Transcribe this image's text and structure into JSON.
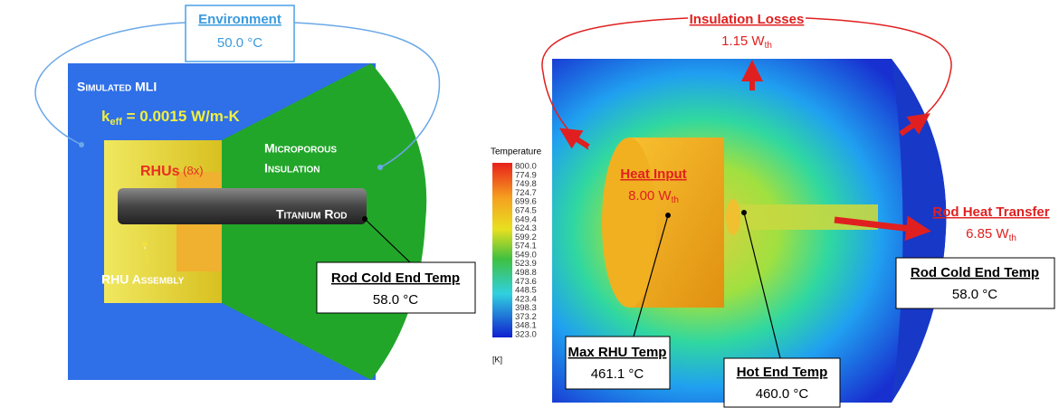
{
  "left": {
    "environment": {
      "title": "Environment",
      "value": "50.0 °C"
    },
    "mli": {
      "title": "Simulated MLI",
      "k": "k",
      "sub": "eff",
      "rest": " = 0.0015 W/m-K"
    },
    "rhus": {
      "name": "RHUs",
      "count": " (8x)"
    },
    "insulation": [
      "Microporous",
      "Insulation"
    ],
    "rod": "Titanium Rod",
    "assembly": "RHU Assembly",
    "cold_end": {
      "title": "Rod Cold End Temp",
      "value": "58.0 °C"
    }
  },
  "colorbar": {
    "title": "Temperature",
    "unit": "[K]",
    "ticks": [
      "800.0",
      "774.9",
      "749.8",
      "724.7",
      "699.6",
      "674.5",
      "649.4",
      "624.3",
      "599.2",
      "574.1",
      "549.0",
      "523.9",
      "498.8",
      "473.6",
      "448.5",
      "423.4",
      "398.3",
      "373.2",
      "348.1",
      "323.0"
    ]
  },
  "right": {
    "losses": {
      "title": "Insulation Losses",
      "value": "1.15 W",
      "sub": "th"
    },
    "heat_input": {
      "title": "Heat Input",
      "value": "8.00 W",
      "sub": "th"
    },
    "rod_transfer": {
      "title": "Rod Heat Transfer",
      "value": "6.85 W",
      "sub": "th"
    },
    "cold_end": {
      "title": "Rod Cold End Temp",
      "value": "58.0 °C"
    },
    "max_rhu": {
      "title": "Max RHU Temp",
      "value": "461.1 °C"
    },
    "hot_end": {
      "title": "Hot End Temp",
      "value": "460.0 °C"
    }
  }
}
